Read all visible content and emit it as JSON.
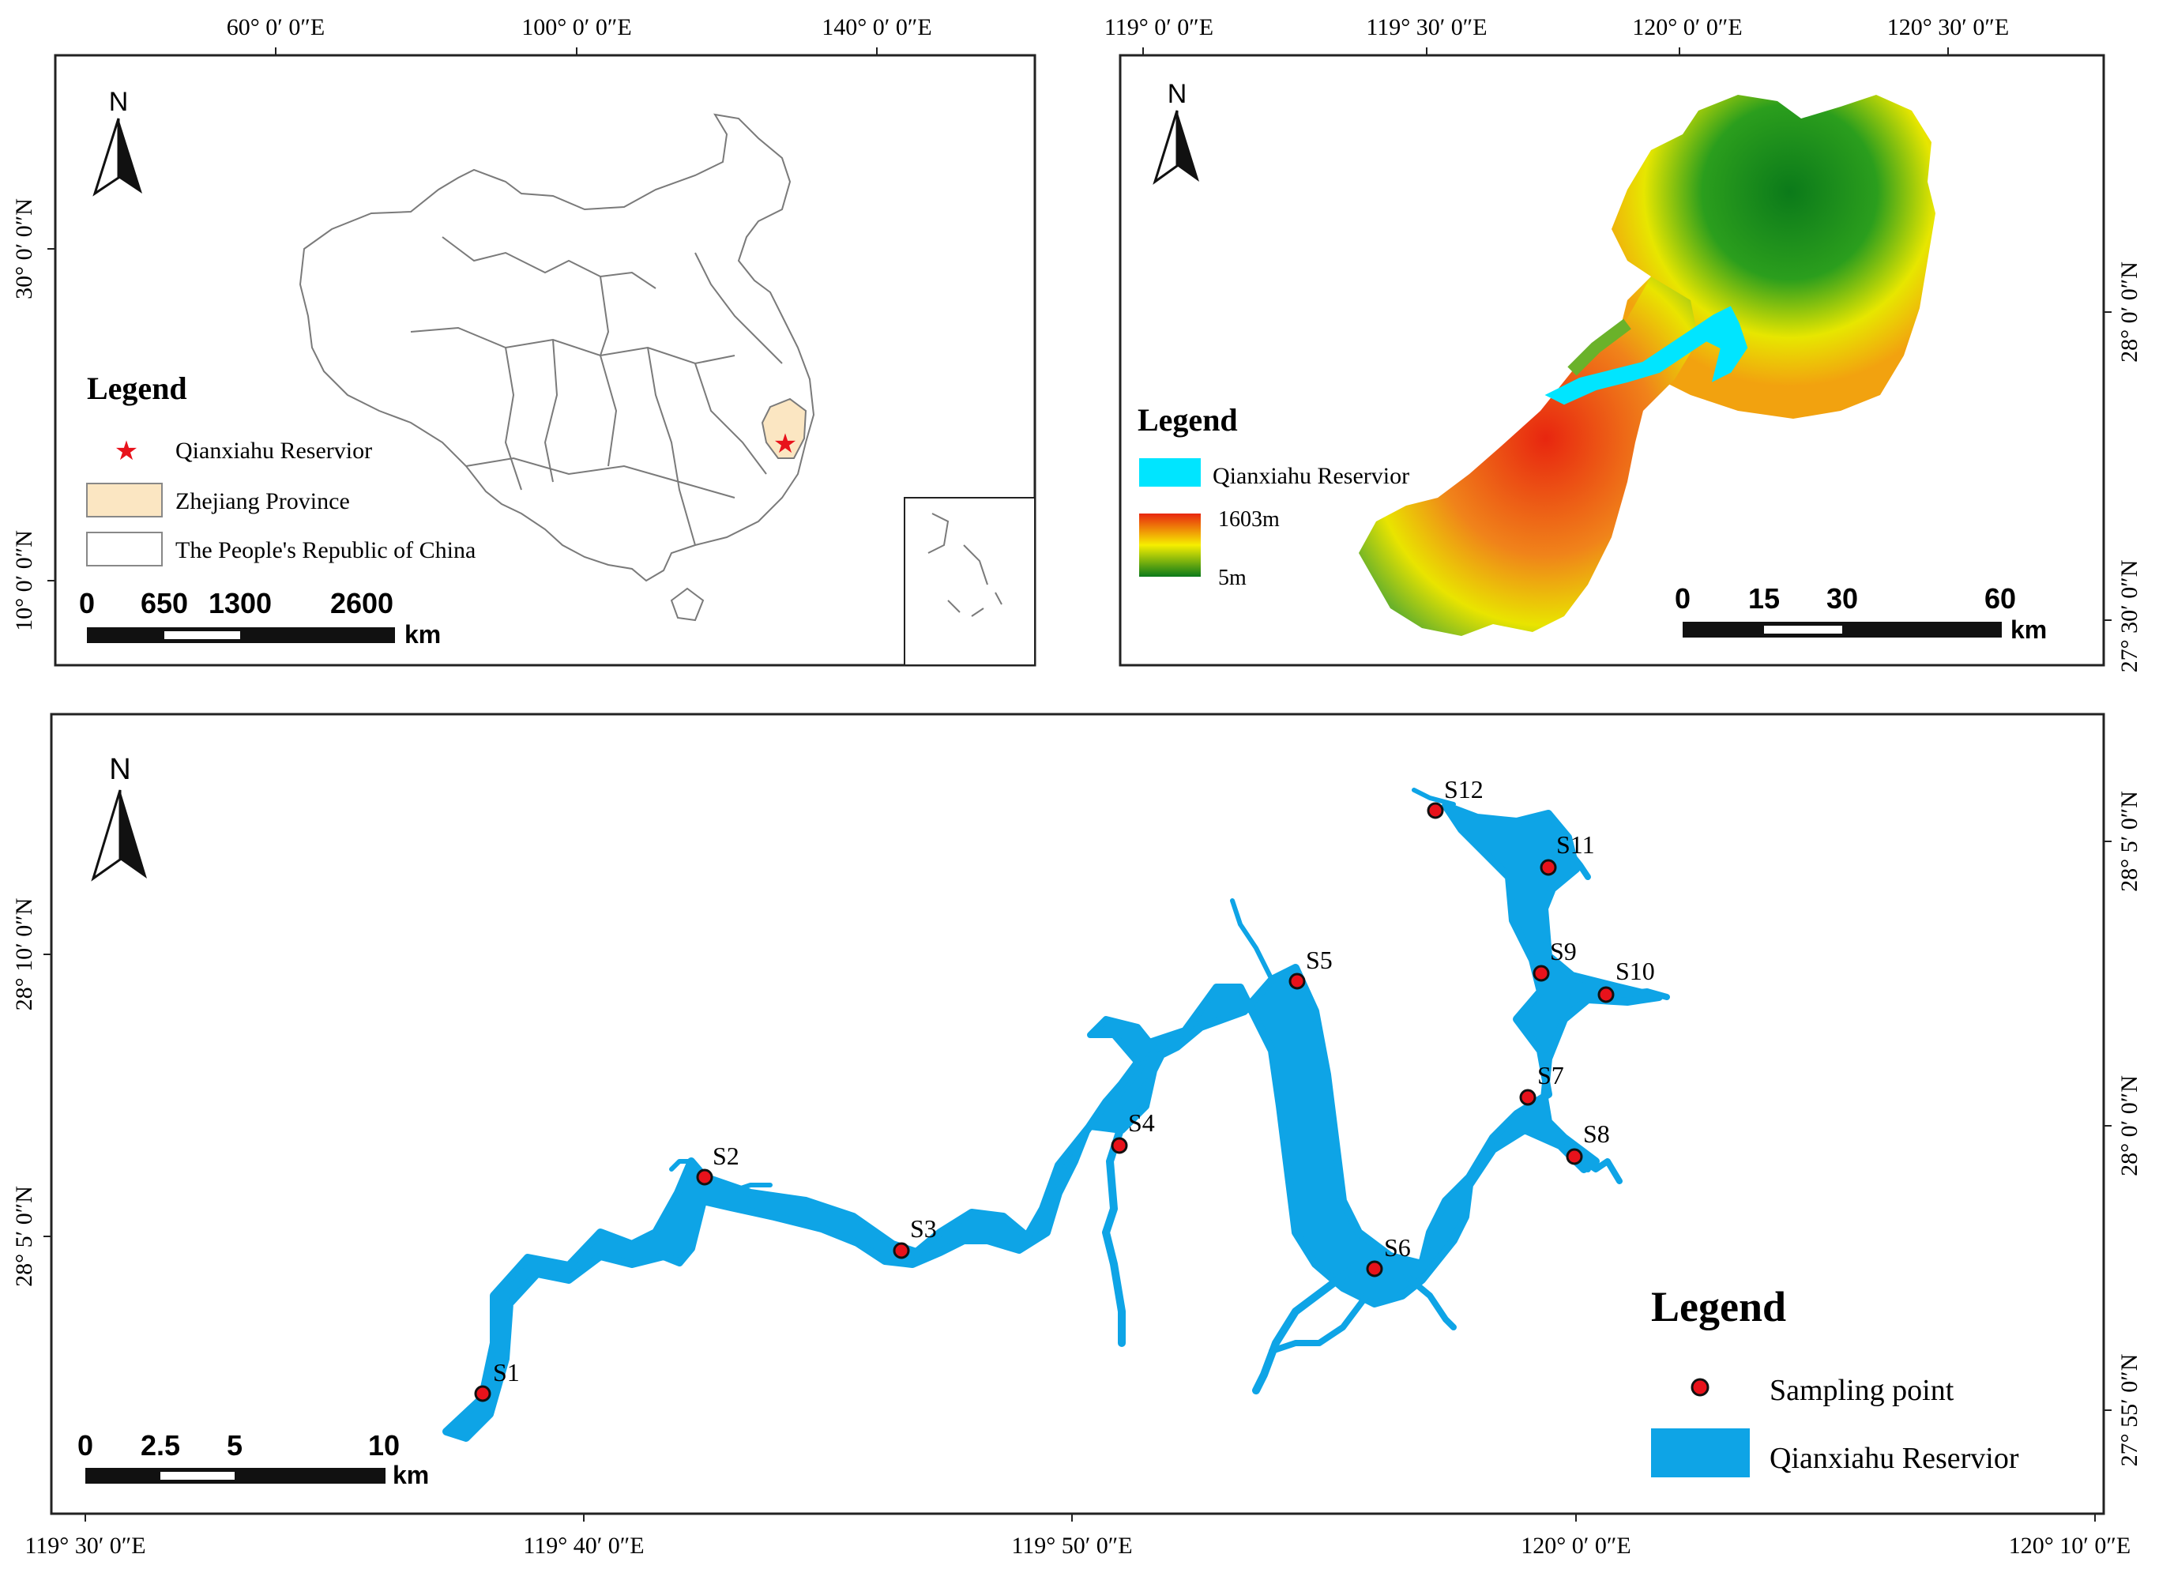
{
  "panel_china": {
    "top_ticks": [
      "60° 0′ 0″E",
      "100° 0′ 0″E",
      "140° 0′ 0″E"
    ],
    "left_ticks": [
      "30° 0′ 0″N",
      "10° 0′ 0″N"
    ],
    "north": "N",
    "legend_title": "Legend",
    "legend_items": [
      "Qianxiahu Reservior",
      "Zhejiang Province",
      "The People's Republic of China"
    ],
    "scale_labels": [
      "0",
      "650",
      "1300",
      "2600"
    ],
    "scale_unit": "km",
    "colors": {
      "province": "#fbe6c2",
      "star": "#e8121b",
      "border": "#7a7a7a"
    }
  },
  "panel_dem": {
    "top_ticks": [
      "119° 0′ 0″E",
      "119° 30′ 0″E",
      "120° 0′ 0″E",
      "120° 30′ 0″E"
    ],
    "right_ticks": [
      "28° 0′ 0″N",
      "27° 30′ 0″N"
    ],
    "north": "N",
    "legend_title": "Legend",
    "legend_items": [
      "Qianxiahu Reservior",
      "1603m",
      "5m"
    ],
    "scale_labels": [
      "0",
      "15",
      "30",
      "60"
    ],
    "scale_unit": "km",
    "colors": {
      "reservoir": "#00e5ff",
      "high": "#e8260f",
      "mid": "#f6ee00",
      "low": "#0b7a1a"
    }
  },
  "panel_reservoir": {
    "bottom_ticks": [
      "119° 30′ 0″E",
      "119° 40′ 0″E",
      "119° 50′ 0″E",
      "120° 0′ 0″E",
      "120° 10′ 0″E"
    ],
    "left_ticks": [
      "28° 10′ 0″N",
      "28° 5′ 0″N"
    ],
    "right_ticks": [
      "28° 5′ 0″N",
      "28° 0′ 0″N",
      "27° 55′ 0″N"
    ],
    "north": "N",
    "sites": [
      "S1",
      "S2",
      "S3",
      "S4",
      "S5",
      "S6",
      "S7",
      "S8",
      "S9",
      "S10",
      "S11",
      "S12"
    ],
    "legend_title": "Legend",
    "legend_items": [
      "Sampling point",
      "Qianxiahu Reservior"
    ],
    "scale_labels": [
      "0",
      "2.5",
      "5",
      "10"
    ],
    "scale_unit": "km",
    "colors": {
      "water": "#0ea4e6",
      "point": "#e8121b"
    }
  }
}
